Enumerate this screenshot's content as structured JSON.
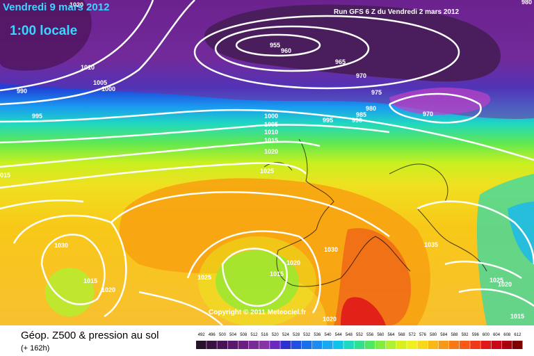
{
  "header": {
    "date": "Vendredi 9 mars 2012",
    "time": "1:00 locale",
    "run": "Run GFS 6 Z du Vendredi 2 mars 2012"
  },
  "copyright": "Copyright © 2011 Meteociel.fr",
  "footer": {
    "title": "Géop. Z500 & pression au sol",
    "subtitle": "(+ 162h)"
  },
  "legend": {
    "values": [
      "492",
      "496",
      "500",
      "504",
      "508",
      "512",
      "516",
      "520",
      "524",
      "528",
      "532",
      "536",
      "540",
      "544",
      "548",
      "552",
      "556",
      "560",
      "564",
      "568",
      "572",
      "576",
      "580",
      "584",
      "588",
      "592",
      "596",
      "600",
      "604",
      "608",
      "612"
    ],
    "colors": [
      "#2a0f2e",
      "#3a1040",
      "#4a1256",
      "#5a186c",
      "#6a1f82",
      "#7a2a96",
      "#8a32a8",
      "#6a2ac0",
      "#3030d0",
      "#2050e0",
      "#1a6fe8",
      "#1c8cf0",
      "#18a8f0",
      "#10c4e8",
      "#20d8c0",
      "#30e090",
      "#50e860",
      "#80ec40",
      "#b0f030",
      "#d8f020",
      "#f0f020",
      "#f8d818",
      "#f8b818",
      "#f89818",
      "#f87818",
      "#f85818",
      "#f03818",
      "#e01818",
      "#c80818",
      "#a80010",
      "#800000"
    ]
  },
  "isobars": [
    {
      "text": "1020"
    },
    {
      "text": "980"
    },
    {
      "text": "1010"
    },
    {
      "text": "1005"
    },
    {
      "text": "1000"
    },
    {
      "text": "990"
    },
    {
      "text": "995"
    },
    {
      "text": "955"
    },
    {
      "text": "960"
    },
    {
      "text": "965"
    },
    {
      "text": "970"
    },
    {
      "text": "975"
    },
    {
      "text": "980"
    },
    {
      "text": "985"
    },
    {
      "text": "990"
    },
    {
      "text": "995"
    },
    {
      "text": "970"
    },
    {
      "text": "1000"
    },
    {
      "text": "1005"
    },
    {
      "text": "1010"
    },
    {
      "text": "1015"
    },
    {
      "text": "1020"
    },
    {
      "text": "1025"
    },
    {
      "text": "015"
    },
    {
      "text": "1030"
    },
    {
      "text": "1030"
    },
    {
      "text": "1035"
    },
    {
      "text": "1020"
    },
    {
      "text": "1015"
    },
    {
      "text": "1025"
    },
    {
      "text": "1015"
    },
    {
      "text": "1020"
    },
    {
      "text": "1020"
    },
    {
      "text": "1025"
    },
    {
      "text": "1020"
    },
    {
      "text": "1015"
    }
  ]
}
